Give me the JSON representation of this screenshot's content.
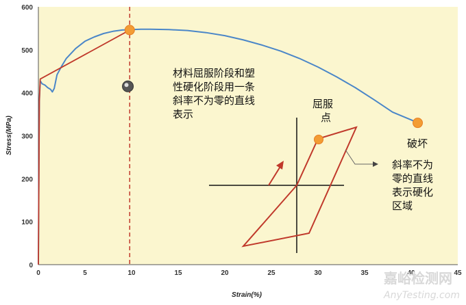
{
  "chart_data": {
    "type": "line",
    "xlabel": "Strain(%)",
    "ylabel": "Stress(MPa)",
    "xlim": [
      0,
      45
    ],
    "ylim": [
      0,
      600
    ],
    "x_ticks": [
      0,
      5,
      10,
      15,
      20,
      25,
      30,
      35,
      40,
      45
    ],
    "y_ticks": [
      0,
      100,
      200,
      300,
      400,
      500,
      600
    ],
    "grid": false,
    "series": [
      {
        "color": "#4a86c8",
        "x": [
          0,
          0.05,
          0.1,
          0.2,
          0.4,
          0.7,
          1.0,
          1.3,
          1.5,
          1.7,
          2.0,
          2.5,
          3.0,
          4.0,
          5.0,
          6.0,
          7.0,
          8.0,
          9.0,
          10.0,
          11.0,
          12.0,
          14.0,
          16.0,
          18.0,
          20.0,
          22.0,
          24.0,
          26.0,
          28.0,
          30.0,
          32.0,
          34.0,
          36.0,
          38.0,
          40.0,
          40.7
        ],
        "y": [
          0,
          200,
          380,
          428,
          421,
          418,
          412,
          408,
          402,
          410,
          442,
          462,
          480,
          503,
          520,
          530,
          538,
          543,
          546,
          547,
          548,
          548,
          547,
          545,
          540,
          533,
          523,
          511,
          497,
          480,
          460,
          437,
          412,
          384,
          355,
          337,
          330
        ]
      },
      {
        "color": "#c0392b",
        "x": [
          0,
          0.1,
          0.2,
          9.8
        ],
        "y": [
          0,
          380,
          432,
          546
        ]
      }
    ],
    "reference_line": {
      "x": 9.8,
      "color": "#c0392b",
      "style": "dashed"
    },
    "points": [
      {
        "x": 9.8,
        "y": 546,
        "color": "#f39c34"
      },
      {
        "x": 40.7,
        "y": 330,
        "color": "#f39c34"
      },
      {
        "x": 9.6,
        "y": 415,
        "color": "#666666"
      }
    ],
    "annotations": [
      {
        "lines": [
          "材料屈服阶段和塑",
          "性硬化阶段用一条",
          "斜率不为零的直线",
          "表示"
        ]
      },
      {
        "lines": [
          "破坏"
        ]
      },
      {
        "lines": [
          "屈服",
          "点"
        ]
      },
      {
        "lines": [
          "斜率不为",
          "零的直线",
          "表示硬化",
          "区域"
        ]
      }
    ]
  },
  "watermark": {
    "line1": "嘉峪检测网",
    "line2": "AnyTesting.com"
  }
}
